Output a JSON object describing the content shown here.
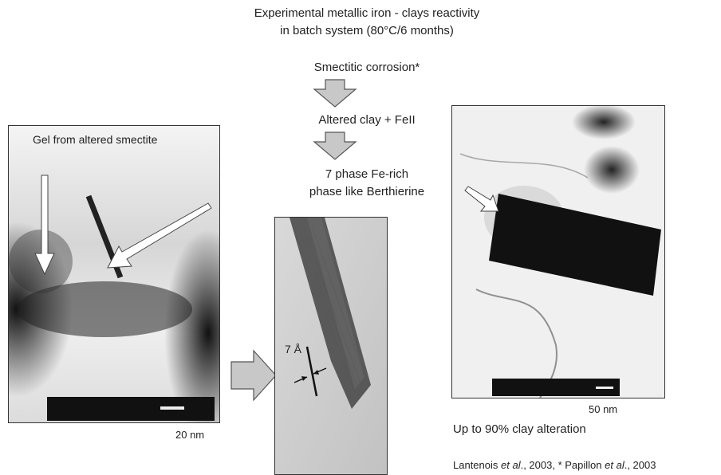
{
  "header": {
    "title_line1": "Experimental metallic iron - clays reactivity",
    "title_line2": "in batch system (80°C/6 months)"
  },
  "flow": {
    "step1": "Smectitic corrosion*",
    "step2": "Altered clay + FeII",
    "step3_line1": "7 phase Fe-rich",
    "step3_line2": "phase like Berthierine"
  },
  "left_panel": {
    "caption": "Gel from altered smectite",
    "scale_label": "20 nm"
  },
  "middle_panel": {
    "spacing_label": "7 Å"
  },
  "right_panel": {
    "scale_label": "50 nm",
    "note": "Up to 90% clay alteration"
  },
  "references": {
    "ref1_authors": "Lantenois",
    "ref1_etal": "et al",
    "ref1_year": "., 2003, * ",
    "ref2_authors": "Papillon",
    "ref2_etal": "et al",
    "ref2_year": "., 2003"
  },
  "colors": {
    "arrow_fill": "#c8c8c8",
    "arrow_stroke": "#555555",
    "micrograph_dark": "#111111"
  }
}
